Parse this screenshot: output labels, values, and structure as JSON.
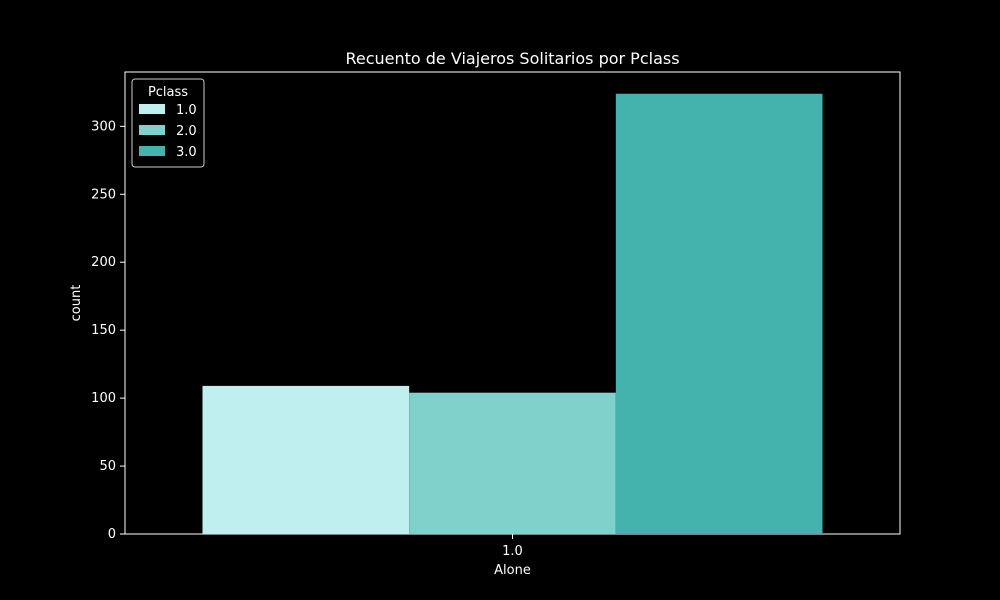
{
  "chart_data": {
    "type": "bar",
    "title": "Recuento de Viajeros Solitarios por Pclass",
    "xlabel": "Alone",
    "ylabel": "count",
    "categories": [
      "1.0"
    ],
    "series": [
      {
        "name": "1.0",
        "values": [
          109
        ],
        "color": "#bff0ef"
      },
      {
        "name": "2.0",
        "values": [
          104
        ],
        "color": "#7fd1cb"
      },
      {
        "name": "3.0",
        "values": [
          324
        ],
        "color": "#44b3ae"
      }
    ],
    "ylim": [
      0,
      340
    ],
    "yticks": [
      0,
      50,
      100,
      150,
      200,
      250,
      300
    ],
    "ytick_labels": [
      "0",
      "50",
      "100",
      "150",
      "200",
      "250",
      "300"
    ],
    "grid": false,
    "legend": {
      "title": "Pclass",
      "placement": "top-left"
    },
    "colors": {
      "background": "#000000",
      "foreground": "#ffffff"
    }
  }
}
